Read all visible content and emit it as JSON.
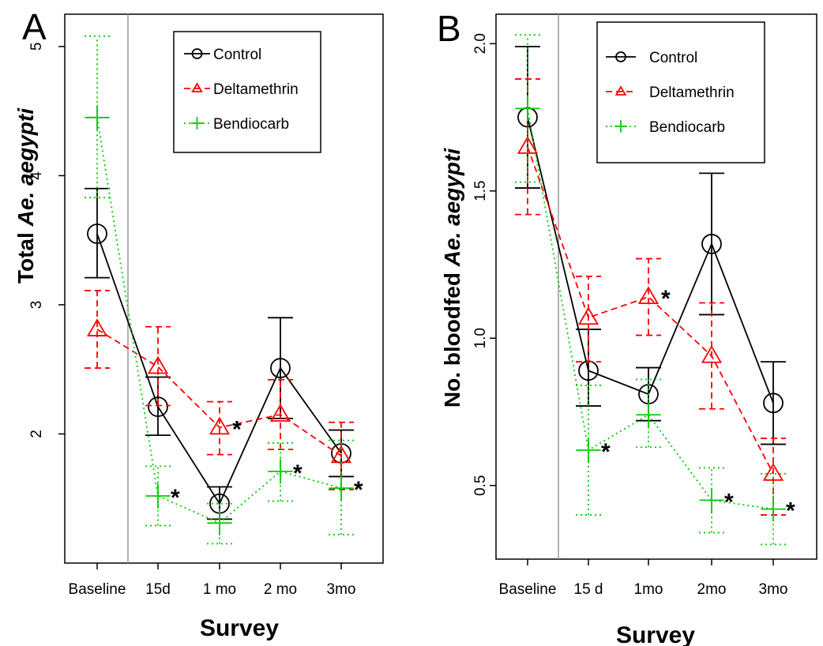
{
  "colors": {
    "Control": "#000000",
    "Deltamethrin": "#ff0000",
    "Bendiocarb": "#00cc00",
    "separator": "#999999"
  },
  "chart_data": [
    {
      "panel": "A",
      "type": "line",
      "xlabel": "Survey",
      "ylabel_prefix": "Total ",
      "ylabel_italic": "Ae. aegypti",
      "categories": [
        "Baseline",
        "15d",
        "1 mo",
        "2 mo",
        "3mo"
      ],
      "yticks": [
        "2",
        "3",
        "4",
        "5"
      ],
      "ylim": [
        1.0,
        5.25
      ],
      "legend_position": "top-right",
      "series": [
        {
          "name": "Control",
          "marker": "circle",
          "line": "solid",
          "values": [
            3.55,
            2.21,
            1.46,
            2.51,
            1.85
          ],
          "lower": [
            3.21,
            1.99,
            1.34,
            2.12,
            1.67
          ],
          "upper": [
            3.9,
            2.44,
            1.59,
            2.9,
            2.03
          ]
        },
        {
          "name": "Deltamethrin",
          "marker": "triangle",
          "line": "dashed",
          "values": [
            2.81,
            2.52,
            2.05,
            2.15,
            1.83
          ],
          "lower": [
            2.51,
            2.22,
            1.84,
            1.88,
            1.57
          ],
          "upper": [
            3.11,
            2.83,
            2.25,
            2.42,
            2.09
          ]
        },
        {
          "name": "Bendiocarb",
          "marker": "plus",
          "line": "dotted",
          "values": [
            4.45,
            1.52,
            1.31,
            1.71,
            1.58
          ],
          "lower": [
            3.83,
            1.29,
            1.15,
            1.48,
            1.22
          ],
          "upper": [
            5.08,
            1.75,
            1.46,
            1.93,
            1.95
          ]
        }
      ],
      "annotations": [
        {
          "text": "*",
          "category": "15d",
          "y": 1.52
        },
        {
          "text": "*",
          "category": "1 mo",
          "y": 2.05
        },
        {
          "text": "*",
          "category": "2 mo",
          "y": 1.71
        },
        {
          "text": "*",
          "category": "3mo",
          "y": 1.58
        }
      ]
    },
    {
      "panel": "B",
      "type": "line",
      "xlabel": "Survey",
      "ylabel_prefix": "No. bloodfed ",
      "ylabel_italic": "Ae. aegypti",
      "categories": [
        "Baseline",
        "15 d",
        "1mo",
        "2mo",
        "3mo"
      ],
      "yticks": [
        "0.5",
        "1.0",
        "1.5",
        "2.0"
      ],
      "ylim": [
        0.25,
        2.1
      ],
      "legend_position": "top-right",
      "series": [
        {
          "name": "Control",
          "marker": "circle",
          "line": "solid",
          "values": [
            1.75,
            0.89,
            0.81,
            1.32,
            0.78
          ],
          "lower": [
            1.51,
            0.77,
            0.72,
            1.08,
            0.64
          ],
          "upper": [
            1.99,
            1.03,
            0.9,
            1.56,
            0.92
          ]
        },
        {
          "name": "Deltamethrin",
          "marker": "triangle",
          "line": "dashed",
          "values": [
            1.65,
            1.07,
            1.14,
            0.94,
            0.54
          ],
          "lower": [
            1.42,
            0.92,
            1.01,
            0.76,
            0.4
          ],
          "upper": [
            1.88,
            1.21,
            1.27,
            1.12,
            0.66
          ]
        },
        {
          "name": "Bendiocarb",
          "marker": "plus",
          "line": "dotted",
          "values": [
            1.78,
            0.62,
            0.74,
            0.45,
            0.42
          ],
          "lower": [
            1.53,
            0.4,
            0.63,
            0.34,
            0.3
          ],
          "upper": [
            2.03,
            0.84,
            0.86,
            0.56,
            0.54
          ]
        }
      ],
      "annotations": [
        {
          "text": "*",
          "category": "15 d",
          "y": 0.62
        },
        {
          "text": "*",
          "category": "1mo",
          "y": 1.14
        },
        {
          "text": "*",
          "category": "2mo",
          "y": 0.45
        },
        {
          "text": "*",
          "category": "3mo",
          "y": 0.42
        }
      ]
    }
  ]
}
